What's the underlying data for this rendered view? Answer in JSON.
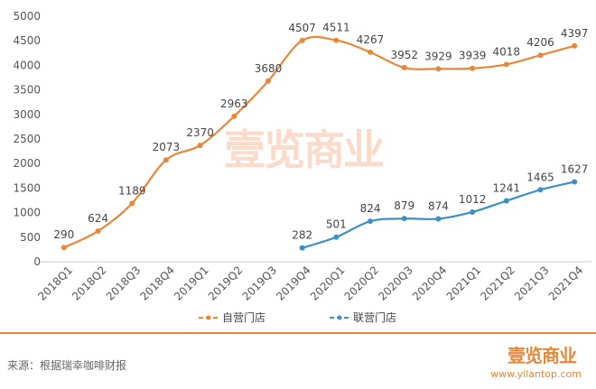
{
  "chart_data": {
    "type": "line",
    "categories": [
      "2018Q1",
      "2018Q2",
      "2018Q3",
      "2018Q4",
      "2019Q1",
      "2019Q2",
      "2019Q3",
      "2019Q4",
      "2020Q1",
      "2020Q2",
      "2020Q3",
      "2020Q4",
      "2021Q1",
      "2021Q2",
      "2021Q3",
      "2021Q4"
    ],
    "series": [
      {
        "name": "自营门店",
        "color": "#e8873a",
        "values": [
          290,
          624,
          1189,
          2073,
          2370,
          2963,
          3680,
          4507,
          4511,
          4267,
          3952,
          3929,
          3939,
          4018,
          4206,
          4397
        ]
      },
      {
        "name": "联营门店",
        "color": "#3d8fc6",
        "values": [
          null,
          null,
          null,
          null,
          null,
          null,
          null,
          282,
          501,
          824,
          879,
          874,
          1012,
          1241,
          1465,
          1627
        ]
      }
    ],
    "yticks": [
      0,
      500,
      1000,
      1500,
      2000,
      2500,
      3000,
      3500,
      4000,
      4500,
      5000
    ],
    "ylim": [
      0,
      5000
    ],
    "grid": false,
    "legend": "bottom"
  },
  "footer": {
    "source": "来源：根据瑞幸咖啡财报",
    "logo": "壹览商业",
    "url": "www.yilantop.com"
  },
  "watermark": "壹览商业"
}
